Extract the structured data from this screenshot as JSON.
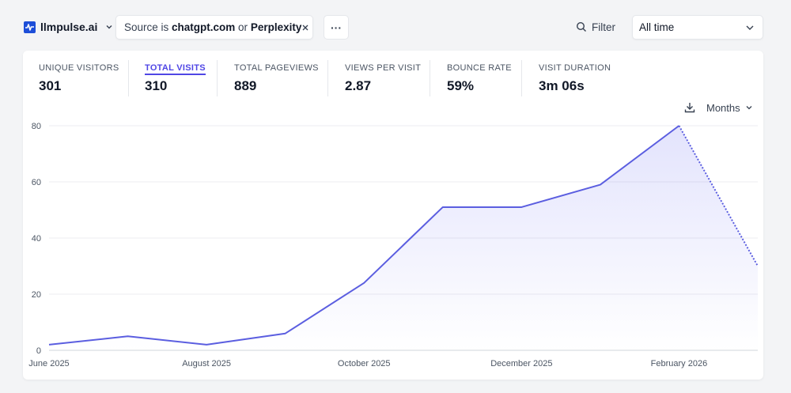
{
  "site": {
    "name": "llmpulse.ai"
  },
  "filter_chip": {
    "prefix": "Source is ",
    "value1": "chatgpt.com",
    "joiner": " or ",
    "value2": "Perplexity"
  },
  "more": {
    "label": "···"
  },
  "filter": {
    "label": "Filter"
  },
  "period": {
    "label": "All time"
  },
  "metrics": [
    {
      "label": "UNIQUE VISITORS",
      "value": "301"
    },
    {
      "label": "TOTAL VISITS",
      "value": "310"
    },
    {
      "label": "TOTAL PAGEVIEWS",
      "value": "889"
    },
    {
      "label": "VIEWS PER VISIT",
      "value": "2.87"
    },
    {
      "label": "BOUNCE RATE",
      "value": "59%"
    },
    {
      "label": "VISIT DURATION",
      "value": "3m 06s"
    }
  ],
  "interval": {
    "label": "Months"
  },
  "colors": {
    "accent": "#4f46e5",
    "line": "#5b5ee0",
    "grid": "#ececf0"
  },
  "chart_data": {
    "type": "line",
    "x": [
      "June 2025",
      "July 2025",
      "August 2025",
      "September 2025",
      "October 2025",
      "November 2025",
      "December 2025",
      "January 2026",
      "February 2026",
      "March 2026"
    ],
    "series": [
      {
        "values": [
          2,
          5,
          2,
          6,
          24,
          51,
          51,
          59,
          80,
          30
        ]
      }
    ],
    "partial_last_point": true,
    "xtick_labels": [
      "June 2025",
      "August 2025",
      "October 2025",
      "December 2025",
      "February 2026"
    ],
    "yticks": [
      0,
      20,
      40,
      60,
      80
    ],
    "ylim": [
      0,
      80
    ],
    "grid": true
  }
}
